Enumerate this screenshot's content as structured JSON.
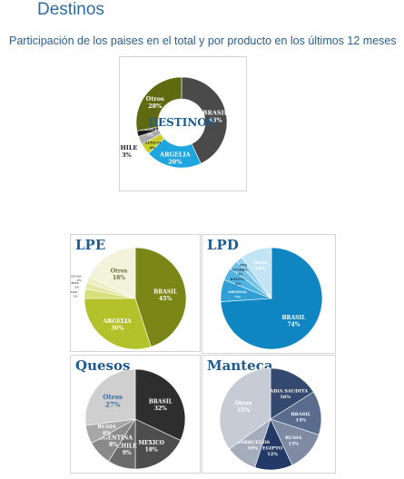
{
  "page": {
    "heading": "Destinos",
    "subtitle": "Participación de los paises en el total y por producto en los últimos 12 meses"
  },
  "colors": {
    "heading": "#2f6c9f",
    "panel_title": "#1f5b8f"
  },
  "chart_data": [
    {
      "type": "pie",
      "variant": "donut",
      "center_label": "DESTINOS",
      "slices": [
        {
          "label": "BRASIL",
          "value": 43,
          "text": "43%",
          "color": "#4a4a4a"
        },
        {
          "label": "ARGELIA",
          "value": 20,
          "text": "20%",
          "color": "#1fa6df"
        },
        {
          "label": "MEXICO",
          "value": 4,
          "text": "4%",
          "color": "#c9cf2a"
        },
        {
          "label": "CHILE",
          "value": 3,
          "text": "3%",
          "color": "#a9a9a9"
        },
        {
          "label": "VENEZUELA",
          "value": 2,
          "text": "2%",
          "color": "#1a1a1a"
        },
        {
          "label": "Otros",
          "value": 28,
          "text": "28%",
          "color": "#5f6a10"
        }
      ]
    },
    {
      "type": "pie",
      "title": "LPE",
      "slices": [
        {
          "label": "BRASIL",
          "value": 45,
          "text": "45%",
          "color": "#7a8716"
        },
        {
          "label": "ARGELIA",
          "value": 30,
          "text": "30%",
          "color": "#b3c22a"
        },
        {
          "label": "PANAMA",
          "value": 3,
          "text": "3%",
          "color": "#d6df7a"
        },
        {
          "label": "CHILE",
          "value": 2,
          "text": "2%",
          "color": "#e2e7a6"
        },
        {
          "label": "MARRUECOS",
          "value": 2,
          "text": "2%",
          "color": "#ecefc4"
        },
        {
          "label": "Otros",
          "value": 18,
          "text": "18%",
          "color": "#f3f3dc"
        }
      ]
    },
    {
      "type": "pie",
      "title": "LPD",
      "slices": [
        {
          "label": "BRASIL",
          "value": 74,
          "text": "74%",
          "color": "#0f86c2"
        },
        {
          "label": "ARGELIA",
          "value": 7,
          "text": "7%",
          "color": "#2f9fd5"
        },
        {
          "label": "BOLIVIA",
          "value": 4,
          "text": "4%",
          "color": "#50b3e1"
        },
        {
          "label": "NIGERIA",
          "value": 3,
          "text": "3%",
          "color": "#6fc0e6"
        },
        {
          "label": "PERU",
          "value": 2,
          "text": "2%",
          "color": "#92d0ee"
        },
        {
          "label": "Otros",
          "value": 10,
          "text": "10%",
          "color": "#c2e5f6"
        }
      ]
    },
    {
      "type": "pie",
      "title": "Quesos",
      "slices": [
        {
          "label": "BRASIL",
          "value": 32,
          "text": "32%",
          "color": "#2e2e2e"
        },
        {
          "label": "MEXICO",
          "value": 18,
          "text": "18%",
          "color": "#4d4d4d"
        },
        {
          "label": "CHILE",
          "value": 9,
          "text": "9%",
          "color": "#6b6b6b"
        },
        {
          "label": "ARGENTINA",
          "value": 8,
          "text": "8%",
          "color": "#8a8a8a"
        },
        {
          "label": "RUSIA",
          "value": 6,
          "text": "6%",
          "color": "#a7a7a7"
        },
        {
          "label": "Otros",
          "value": 27,
          "text": "27%",
          "color": "#cfcfcf"
        }
      ]
    },
    {
      "type": "pie",
      "title": "Manteca",
      "slices": [
        {
          "label": "ARABIA SAUDITA",
          "value": 16,
          "text": "16%",
          "color": "#34496e"
        },
        {
          "label": "BRASIL",
          "value": 14,
          "text": "14%",
          "color": "#5a6c8d"
        },
        {
          "label": "RUSIA",
          "value": 13,
          "text": "13%",
          "color": "#7f8ba3"
        },
        {
          "label": "EGIPTO",
          "value": 12,
          "text": "12%",
          "color": "#233a68"
        },
        {
          "label": "MARRUECOS",
          "value": 10,
          "text": "10%",
          "color": "#a5adbd"
        },
        {
          "label": "Otros",
          "value": 35,
          "text": "35%",
          "color": "#c6cbd5"
        }
      ]
    }
  ]
}
